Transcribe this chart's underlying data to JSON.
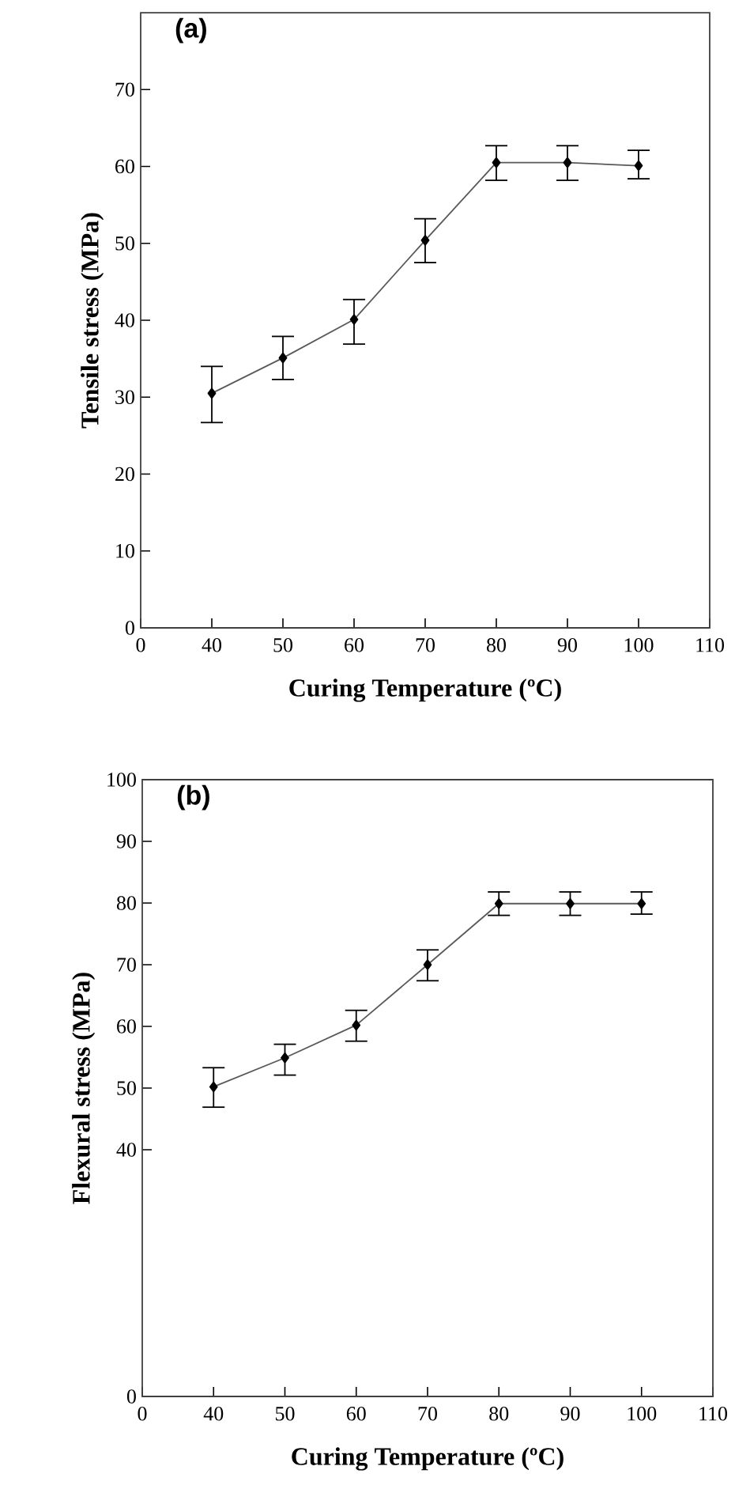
{
  "chart_data": [
    {
      "type": "line",
      "title": "(a)",
      "xlabel": "Curing Temperature (ºC)",
      "ylabel": "Tensile stress (MPa)",
      "categories": [
        "0",
        "40",
        "50",
        "60",
        "70",
        "80",
        "90",
        "100",
        "110"
      ],
      "series": [
        {
          "color": "#000000",
          "values": [
            null,
            30.5,
            35.1,
            40.1,
            50.4,
            60.5,
            60.5,
            60.1,
            null
          ],
          "errors": [
            null,
            [
              26.7,
              34.0
            ],
            [
              32.3,
              37.9
            ],
            [
              36.9,
              42.7
            ],
            [
              47.5,
              53.2
            ],
            [
              58.2,
              62.7
            ],
            [
              58.2,
              62.7
            ],
            [
              58.4,
              62.1
            ],
            null
          ]
        }
      ],
      "marker": "diamond",
      "line_style": "solid",
      "ylim": [
        0,
        80
      ],
      "yticks": [
        0,
        10,
        20,
        30,
        40,
        50,
        60,
        70
      ]
    },
    {
      "type": "line",
      "title": "(b)",
      "xlabel": "Curing Temperature (ºC)",
      "ylabel": "Flexural stress (MPa)",
      "categories": [
        "0",
        "40",
        "50",
        "60",
        "70",
        "80",
        "90",
        "100",
        "110"
      ],
      "series": [
        {
          "color": "#000000",
          "values": [
            null,
            50.2,
            54.9,
            60.2,
            70.0,
            79.9,
            79.9,
            79.9,
            null
          ],
          "errors": [
            null,
            [
              46.9,
              53.3
            ],
            [
              52.1,
              57.1
            ],
            [
              57.6,
              62.6
            ],
            [
              67.4,
              72.4
            ],
            [
              78.0,
              81.8
            ],
            [
              78.0,
              81.8
            ],
            [
              78.2,
              81.8
            ],
            null
          ]
        }
      ],
      "marker": "diamond",
      "line_style": "solid",
      "ylim": [
        0,
        100
      ],
      "yticks": [
        0,
        40,
        50,
        60,
        70,
        80,
        90,
        100
      ]
    }
  ]
}
